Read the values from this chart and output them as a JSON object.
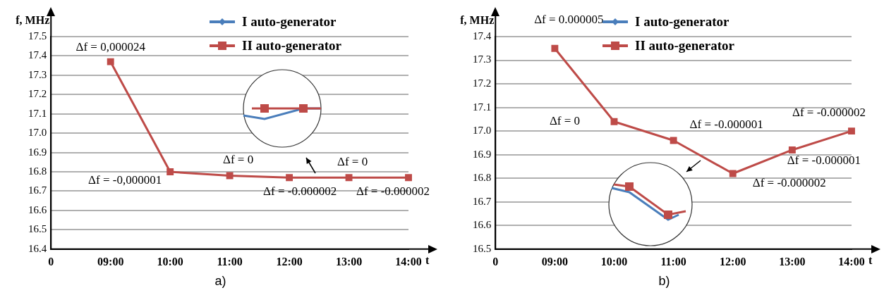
{
  "chart_data": [
    {
      "type": "line",
      "ylabel": "f, MHz",
      "xlabel": "t",
      "categories": [
        "0",
        "09:00",
        "10:00",
        "11:00",
        "12:00",
        "13:00",
        "14:00"
      ],
      "series": [
        {
          "name": "I auto-generator",
          "color": "#4a7ebb",
          "marker": "diamond",
          "values": [
            null,
            null,
            null,
            null,
            null,
            null,
            null
          ]
        },
        {
          "name": "II auto-generator",
          "color": "#be4b48",
          "marker": "square",
          "values": [
            null,
            17.37,
            16.8,
            16.78,
            16.77,
            16.77,
            16.77
          ]
        }
      ],
      "ylim": [
        16.4,
        17.5
      ],
      "yticks": [
        16.4,
        16.5,
        16.6,
        16.7,
        16.8,
        16.9,
        {
          "value": 17,
          "label": "17.0"
        },
        17.1,
        17.2,
        17.3,
        17.4,
        17.5
      ],
      "grid": "y",
      "legend": "top right",
      "line_style": "solid",
      "annotations": [
        {
          "text": "Δf = 0,000024",
          "x": "09:00",
          "y": 17.37
        },
        {
          "text": "Δf = -0,000001",
          "x": "10:00",
          "y": 16.8
        },
        {
          "text": "Δf = 0",
          "x": "11:00",
          "y": 16.78
        },
        {
          "text": "Δf = -0.000002",
          "x": "12:00",
          "y": 16.77
        },
        {
          "text": "Δf = 0",
          "x": "13:00",
          "y": 16.77
        },
        {
          "text": "Δf = -0.000002",
          "x": "14:00",
          "y": 16.77
        },
        "a)"
      ]
    },
    {
      "type": "line",
      "ylabel": "f, MHz",
      "xlabel": "t",
      "categories": [
        "0",
        "09:00",
        "10:00",
        "11:00",
        "12:00",
        "13:00",
        "14:00"
      ],
      "series": [
        {
          "name": "I auto-generator",
          "color": "#4a7ebb",
          "marker": "diamond",
          "values": [
            null,
            null,
            null,
            null,
            null,
            null,
            null
          ]
        },
        {
          "name": "II auto-generator",
          "color": "#be4b48",
          "marker": "square",
          "values": [
            null,
            17.35,
            17.04,
            16.96,
            16.82,
            16.92,
            17.0
          ]
        }
      ],
      "ylim": [
        16.5,
        17.4
      ],
      "yticks": [
        16.5,
        16.6,
        16.7,
        16.8,
        16.9,
        {
          "value": 17,
          "label": "17.0"
        },
        17.1,
        17.2,
        17.3,
        17.4
      ],
      "grid": "y",
      "legend": "top right",
      "line_style": "solid",
      "annotations": [
        {
          "text": "Δf = 0.000005",
          "x": "09:00",
          "y": 17.35
        },
        {
          "text": "Δf = 0",
          "x": "10:00",
          "y": 17.04
        },
        {
          "text": "Δf = -0.000001",
          "x": "11:00",
          "y": 16.96
        },
        {
          "text": "Δf = -0.000002",
          "x": "12:00",
          "y": 16.82
        },
        {
          "text": "Δf = -0.000001",
          "x": "13:00",
          "y": 16.92
        },
        {
          "text": "Δf = -0.000002",
          "x": "14:00",
          "y": 17.0
        },
        "b)"
      ]
    }
  ]
}
